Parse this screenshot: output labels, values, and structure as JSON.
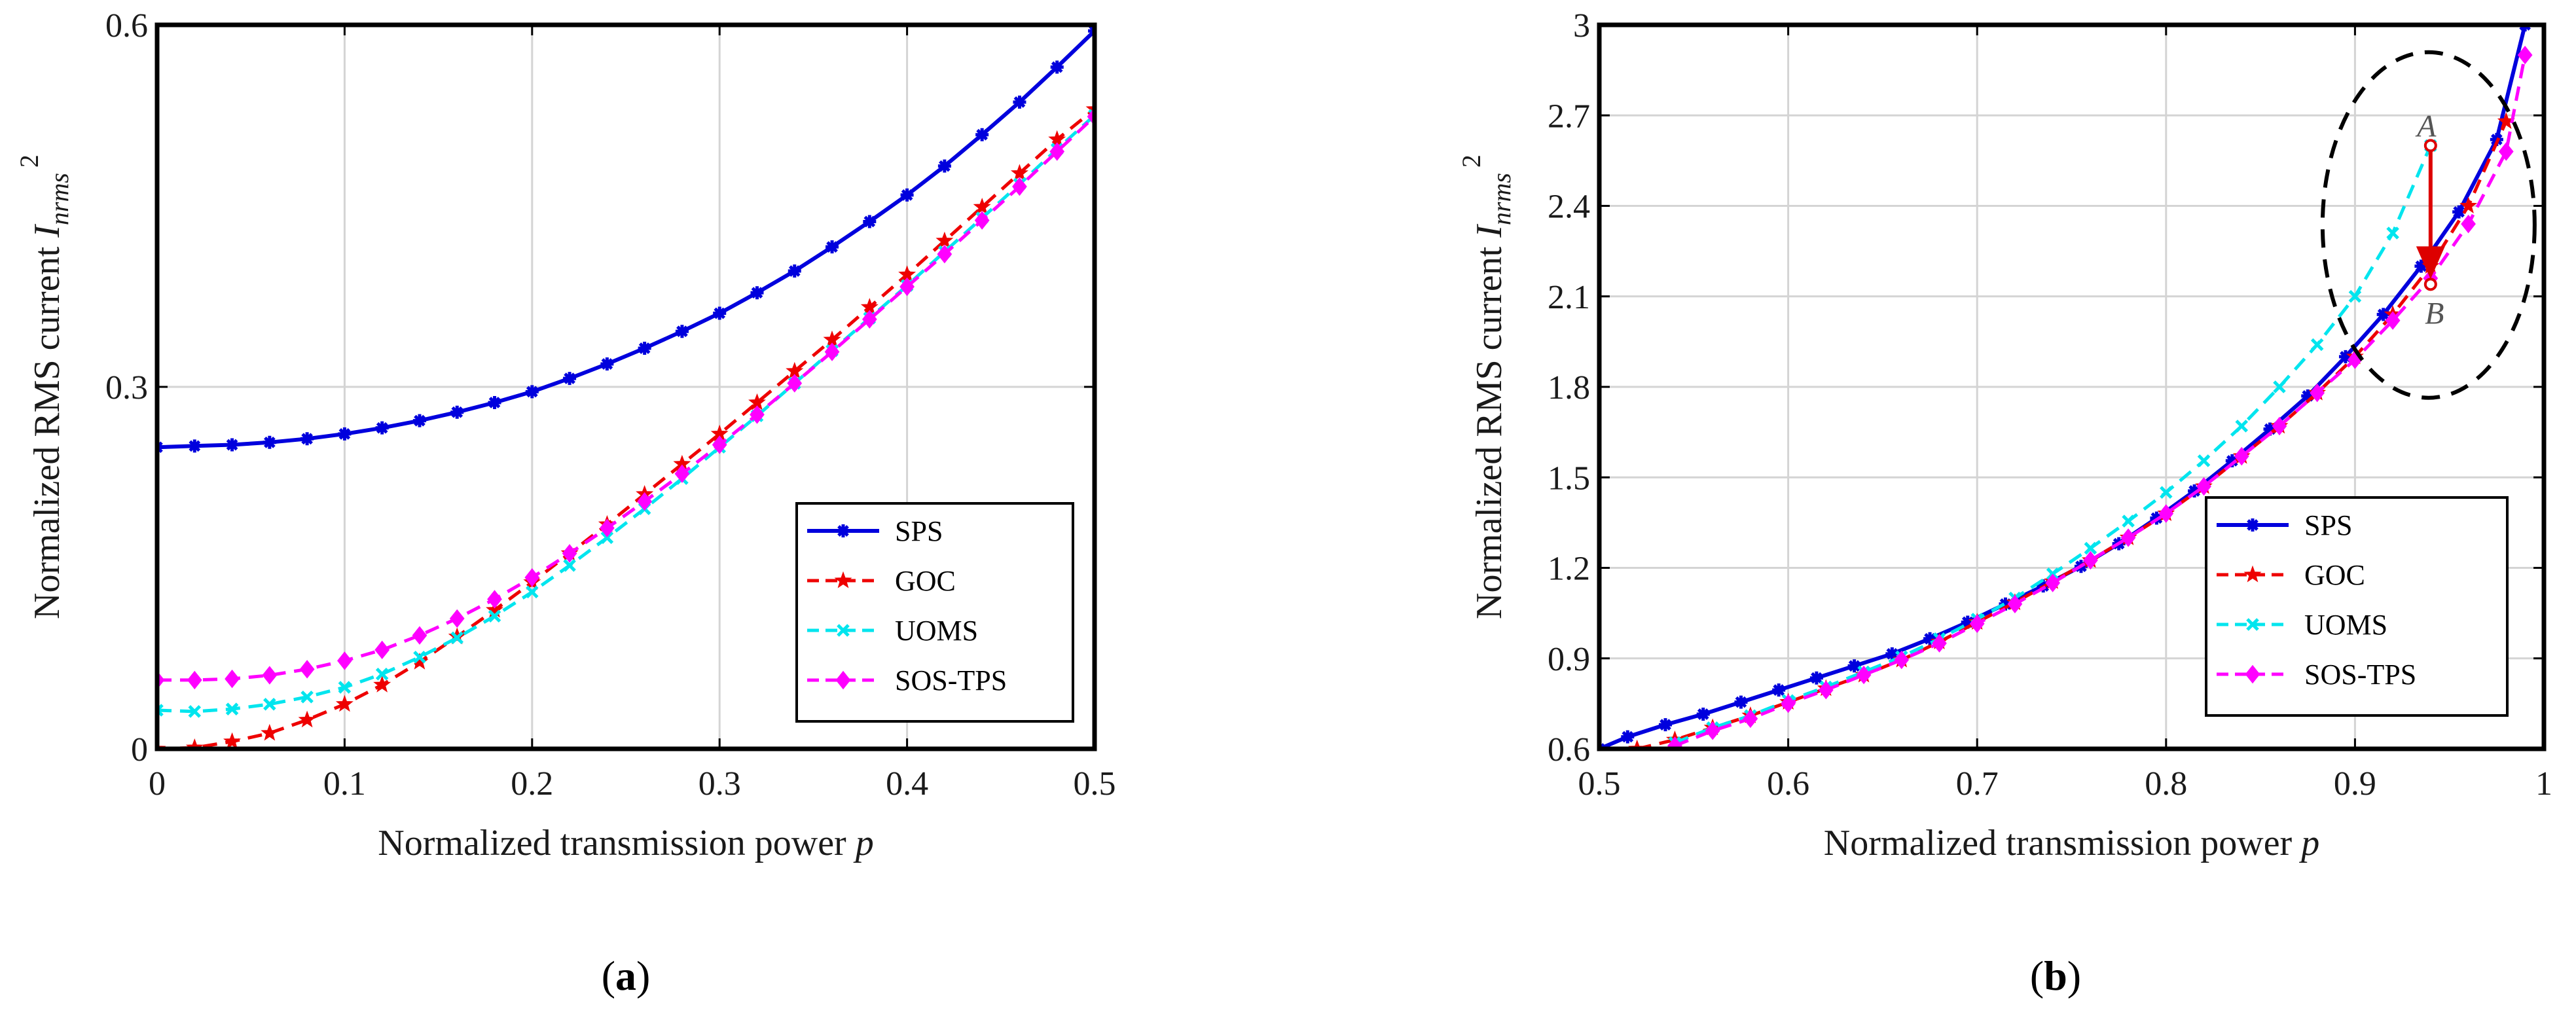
{
  "chart_data": [
    {
      "panel": "a",
      "panel_label_parts": [
        "(",
        "a",
        ")"
      ],
      "type": "line",
      "xlabel": "Normalized transmission power",
      "xlabel_var": "p",
      "ylabel": "Normalized RMS current",
      "ylabel_var": "I",
      "ylabel_sub": "nrms",
      "ylabel_sup": "2",
      "xlim": [
        0,
        0.5
      ],
      "ylim": [
        0,
        0.6
      ],
      "xticks": [
        0,
        0.1,
        0.2,
        0.3,
        0.4,
        0.5
      ],
      "xtick_labels": [
        "0",
        "0.1",
        "0.2",
        "0.3",
        "0.4",
        "0.5"
      ],
      "yticks": [
        0,
        0.3,
        0.6
      ],
      "ytick_labels": [
        "0",
        "0.3",
        "0.6"
      ],
      "grid": true,
      "legend_position": "bottom-right",
      "x": [
        0,
        0.02,
        0.04,
        0.06,
        0.08,
        0.1,
        0.12,
        0.14,
        0.16,
        0.18,
        0.2,
        0.22,
        0.24,
        0.26,
        0.28,
        0.3,
        0.32,
        0.34,
        0.36,
        0.38,
        0.4,
        0.42,
        0.44,
        0.46,
        0.48,
        0.5
      ],
      "series": [
        {
          "name": "SPS",
          "color": "#0000dd",
          "dash": "solid",
          "marker": "asterisk",
          "values": [
            0.25,
            0.251,
            0.252,
            0.254,
            0.257,
            0.261,
            0.266,
            0.272,
            0.279,
            0.287,
            0.296,
            0.307,
            0.319,
            0.332,
            0.346,
            0.361,
            0.378,
            0.396,
            0.416,
            0.437,
            0.459,
            0.483,
            0.509,
            0.536,
            0.565,
            0.595
          ]
        },
        {
          "name": "GOC",
          "color": "#ee0000",
          "dash": "dash",
          "marker": "star",
          "values": [
            0.0,
            0.001,
            0.006,
            0.013,
            0.024,
            0.037,
            0.053,
            0.072,
            0.093,
            0.115,
            0.138,
            0.162,
            0.186,
            0.211,
            0.236,
            0.261,
            0.287,
            0.313,
            0.339,
            0.366,
            0.393,
            0.421,
            0.449,
            0.477,
            0.505,
            0.53
          ]
        },
        {
          "name": "UOMS",
          "color": "#00e5ee",
          "dash": "dash",
          "marker": "x",
          "values": [
            0.032,
            0.031,
            0.033,
            0.037,
            0.043,
            0.051,
            0.062,
            0.076,
            0.092,
            0.11,
            0.13,
            0.152,
            0.175,
            0.199,
            0.224,
            0.25,
            0.276,
            0.303,
            0.33,
            0.357,
            0.384,
            0.412,
            0.44,
            0.468,
            0.497,
            0.525
          ]
        },
        {
          "name": "SOS-TPS",
          "color": "#ff00ff",
          "dash": "dash",
          "marker": "diamond",
          "values": [
            0.057,
            0.057,
            0.058,
            0.061,
            0.066,
            0.073,
            0.082,
            0.094,
            0.108,
            0.124,
            0.142,
            0.162,
            0.183,
            0.205,
            0.228,
            0.252,
            0.277,
            0.303,
            0.329,
            0.356,
            0.383,
            0.41,
            0.438,
            0.466,
            0.495,
            0.524
          ]
        }
      ]
    },
    {
      "panel": "b",
      "panel_label_parts": [
        "(",
        "b",
        ")"
      ],
      "type": "line",
      "xlabel": "Normalized transmission power",
      "xlabel_var": "p",
      "ylabel": "Normalized RMS current",
      "ylabel_var": "I",
      "ylabel_sub": "nrms",
      "ylabel_sup": "2",
      "xlim": [
        0.5,
        1
      ],
      "ylim": [
        0.6,
        3
      ],
      "xticks": [
        0.5,
        0.6,
        0.7,
        0.8,
        0.9,
        1
      ],
      "xtick_labels": [
        "0.5",
        "0.6",
        "0.7",
        "0.8",
        "0.9",
        "1"
      ],
      "yticks": [
        0.6,
        0.9,
        1.2,
        1.5,
        1.8,
        2.1,
        2.4,
        2.7,
        3
      ],
      "ytick_labels": [
        "0.6",
        "0.9",
        "1.2",
        "1.5",
        "1.8",
        "2.1",
        "2.4",
        "2.7",
        "3"
      ],
      "grid": true,
      "legend_position": "bottom-right",
      "annotations": [
        {
          "text": "A",
          "x": 0.94,
          "y": 2.6
        },
        {
          "text": "B",
          "x": 0.94,
          "y": 2.14
        }
      ],
      "series": [
        {
          "name": "SPS",
          "color": "#0000dd",
          "dash": "solid",
          "marker": "asterisk",
          "x": [
            0.5,
            0.515,
            0.535,
            0.555,
            0.575,
            0.595,
            0.615,
            0.635,
            0.655,
            0.675,
            0.695,
            0.715,
            0.735,
            0.755,
            0.775,
            0.795,
            0.815,
            0.835,
            0.855,
            0.875,
            0.895,
            0.915,
            0.935,
            0.955,
            0.975,
            0.99
          ],
          "values": [
            0.6,
            0.64,
            0.68,
            0.715,
            0.755,
            0.795,
            0.835,
            0.875,
            0.915,
            0.965,
            1.02,
            1.08,
            1.14,
            1.205,
            1.28,
            1.365,
            1.455,
            1.555,
            1.66,
            1.77,
            1.9,
            2.04,
            2.2,
            2.38,
            2.62,
            3.0
          ]
        },
        {
          "name": "GOC",
          "color": "#ee0000",
          "dash": "dash",
          "marker": "star",
          "x": [
            0.52,
            0.54,
            0.56,
            0.58,
            0.6,
            0.62,
            0.64,
            0.66,
            0.68,
            0.7,
            0.72,
            0.74,
            0.76,
            0.78,
            0.8,
            0.82,
            0.84,
            0.86,
            0.88,
            0.9,
            0.92,
            0.94,
            0.96,
            0.98
          ],
          "values": [
            0.6,
            0.63,
            0.67,
            0.71,
            0.755,
            0.8,
            0.845,
            0.895,
            0.955,
            1.02,
            1.085,
            1.155,
            1.225,
            1.3,
            1.38,
            1.47,
            1.57,
            1.67,
            1.78,
            1.9,
            2.04,
            2.2,
            2.4,
            2.68
          ]
        },
        {
          "name": "UOMS",
          "color": "#00e5ee",
          "dash": "dash",
          "marker": "x",
          "x": [
            0.54,
            0.56,
            0.58,
            0.6,
            0.62,
            0.64,
            0.66,
            0.68,
            0.7,
            0.72,
            0.74,
            0.76,
            0.78,
            0.8,
            0.82,
            0.84,
            0.86,
            0.88,
            0.9,
            0.92,
            0.94
          ],
          "values": [
            0.62,
            0.67,
            0.71,
            0.76,
            0.805,
            0.855,
            0.905,
            0.965,
            1.03,
            1.1,
            1.18,
            1.265,
            1.355,
            1.45,
            1.555,
            1.67,
            1.8,
            1.94,
            2.1,
            2.31,
            2.6
          ]
        },
        {
          "name": "SOS-TPS",
          "color": "#ff00ff",
          "dash": "dash",
          "marker": "diamond",
          "x": [
            0.54,
            0.56,
            0.58,
            0.6,
            0.62,
            0.64,
            0.66,
            0.68,
            0.7,
            0.72,
            0.74,
            0.76,
            0.78,
            0.8,
            0.82,
            0.84,
            0.86,
            0.88,
            0.9,
            0.92,
            0.94,
            0.96,
            0.98,
            0.99
          ],
          "values": [
            0.61,
            0.66,
            0.7,
            0.75,
            0.795,
            0.845,
            0.895,
            0.95,
            1.015,
            1.08,
            1.15,
            1.225,
            1.3,
            1.38,
            1.47,
            1.57,
            1.67,
            1.78,
            1.89,
            2.02,
            2.16,
            2.34,
            2.58,
            2.9
          ]
        }
      ]
    }
  ]
}
